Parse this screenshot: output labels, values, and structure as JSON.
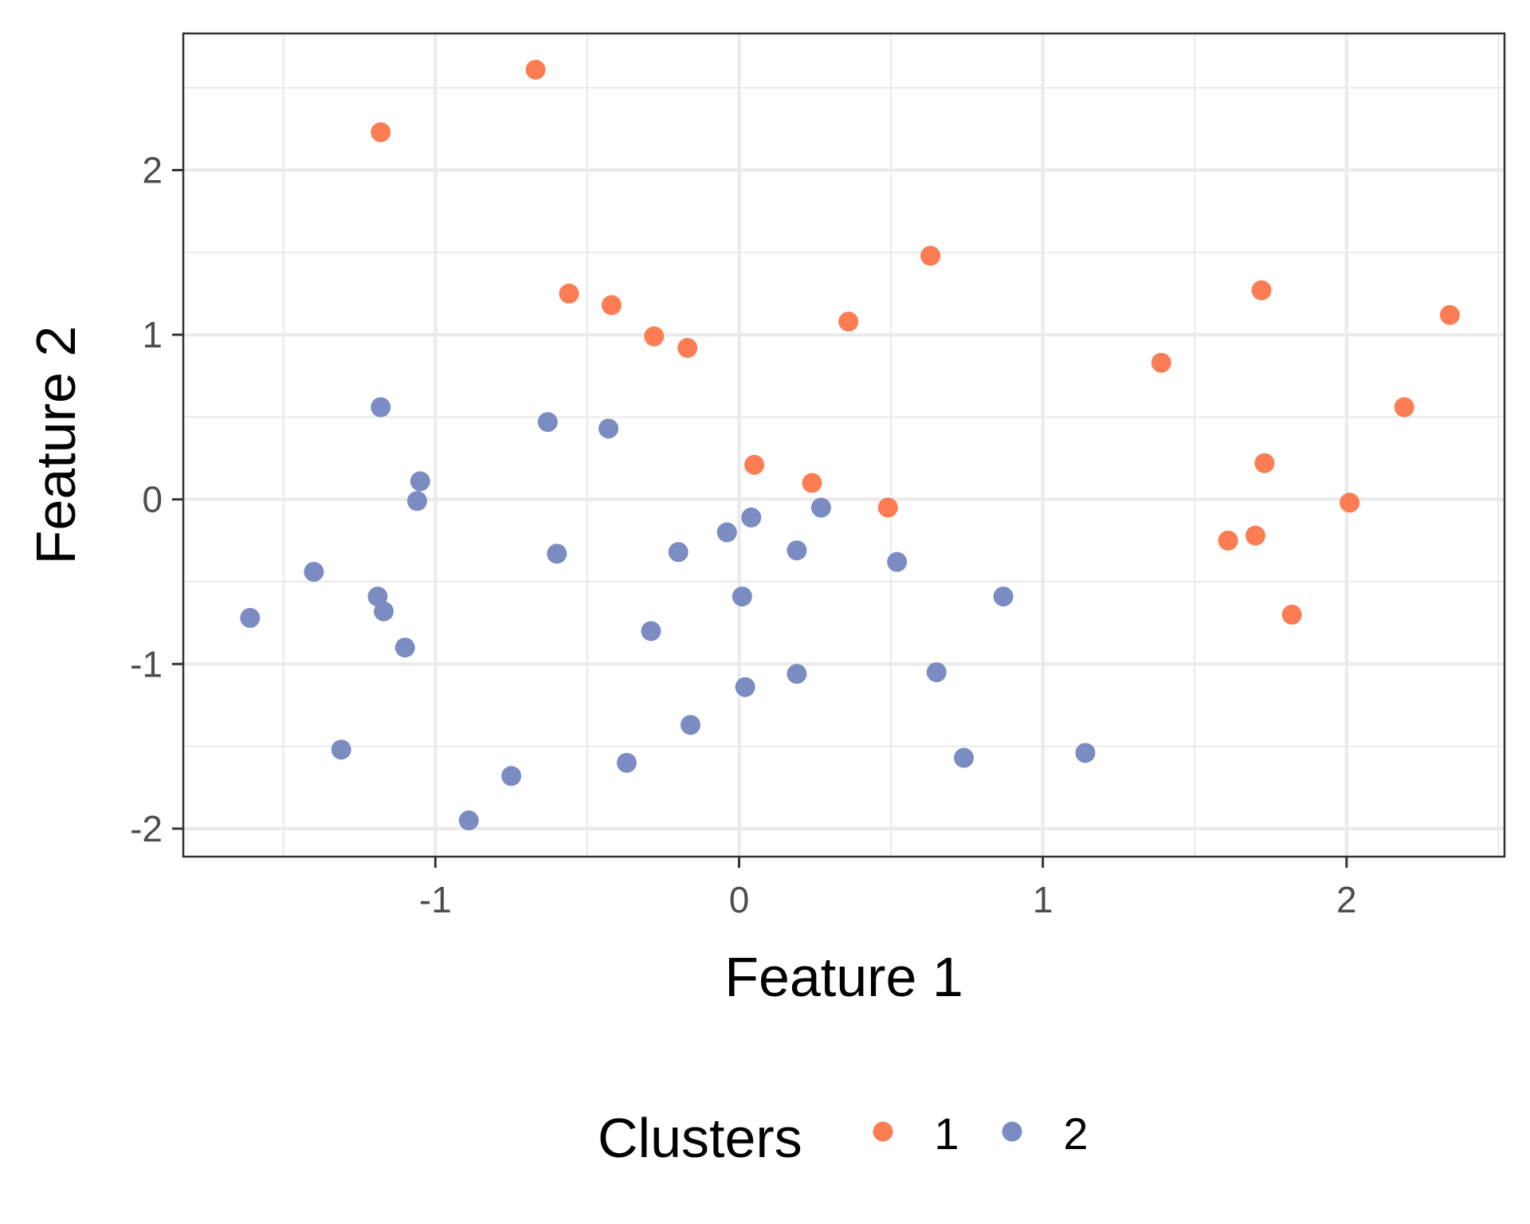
{
  "chart_data": {
    "type": "scatter",
    "xlabel": "Feature 1",
    "ylabel": "Feature 2",
    "xlim": [
      -1.83,
      2.52
    ],
    "ylim": [
      -2.17,
      2.83
    ],
    "x_ticks": [
      -1,
      0,
      1,
      2
    ],
    "y_ticks": [
      -2,
      -1,
      0,
      1,
      2
    ],
    "x_tick_labels": [
      "-1",
      "0",
      "1",
      "2"
    ],
    "y_tick_labels": [
      "-2",
      "-1",
      "0",
      "1",
      "2"
    ],
    "grid": true,
    "legend": {
      "title": "Clusters",
      "position": "bottom"
    },
    "series": [
      {
        "name": "1",
        "color": "#fc7d53",
        "points": [
          [
            -0.67,
            2.61
          ],
          [
            -1.18,
            2.23
          ],
          [
            -0.56,
            1.25
          ],
          [
            -0.42,
            1.18
          ],
          [
            -0.28,
            0.99
          ],
          [
            -0.17,
            0.92
          ],
          [
            0.36,
            1.08
          ],
          [
            0.63,
            1.48
          ],
          [
            0.05,
            0.21
          ],
          [
            0.24,
            0.1
          ],
          [
            0.49,
            -0.05
          ],
          [
            1.39,
            0.83
          ],
          [
            1.72,
            1.27
          ],
          [
            2.34,
            1.12
          ],
          [
            2.19,
            0.56
          ],
          [
            1.73,
            0.22
          ],
          [
            2.01,
            -0.02
          ],
          [
            1.61,
            -0.25
          ],
          [
            1.7,
            -0.22
          ],
          [
            1.82,
            -0.7
          ]
        ]
      },
      {
        "name": "2",
        "color": "#7b8cc2",
        "points": [
          [
            -1.18,
            0.56
          ],
          [
            -1.05,
            0.11
          ],
          [
            -1.06,
            -0.01
          ],
          [
            -1.4,
            -0.44
          ],
          [
            -1.19,
            -0.59
          ],
          [
            -1.17,
            -0.68
          ],
          [
            -1.1,
            -0.9
          ],
          [
            -1.61,
            -0.72
          ],
          [
            -1.31,
            -1.52
          ],
          [
            -0.89,
            -1.95
          ],
          [
            -0.75,
            -1.68
          ],
          [
            -0.37,
            -1.6
          ],
          [
            -0.63,
            0.47
          ],
          [
            -0.43,
            0.43
          ],
          [
            -0.6,
            -0.33
          ],
          [
            -0.2,
            -0.32
          ],
          [
            -0.29,
            -0.8
          ],
          [
            -0.16,
            -1.37
          ],
          [
            -0.04,
            -0.2
          ],
          [
            0.04,
            -0.11
          ],
          [
            0.01,
            -0.59
          ],
          [
            0.02,
            -1.14
          ],
          [
            0.19,
            -0.31
          ],
          [
            0.27,
            -0.05
          ],
          [
            0.19,
            -1.06
          ],
          [
            0.52,
            -0.38
          ],
          [
            0.65,
            -1.05
          ],
          [
            0.87,
            -0.59
          ],
          [
            0.74,
            -1.57
          ],
          [
            1.14,
            -1.54
          ]
        ]
      }
    ]
  }
}
